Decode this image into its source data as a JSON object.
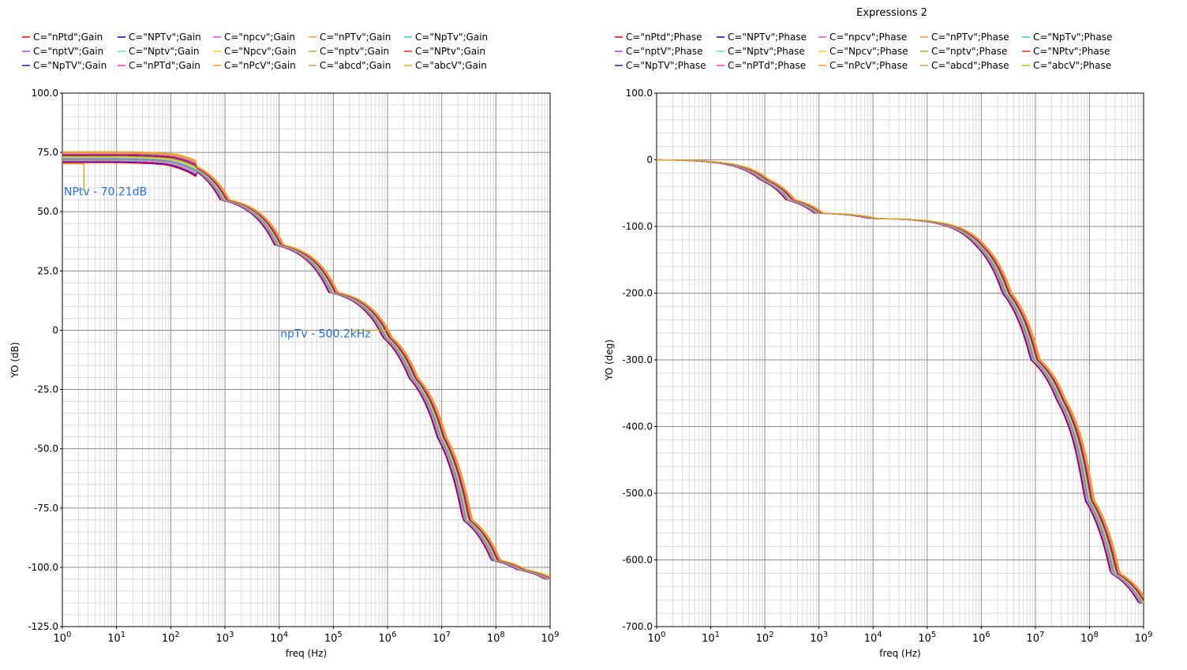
{
  "chart_data": [
    {
      "type": "line",
      "title": "",
      "xlabel": "freq (Hz)",
      "ylabel": "YO (dB)",
      "xscale": "log",
      "xlim": [
        1,
        1000000000
      ],
      "ylim": [
        -125,
        100
      ],
      "yticks": [
        "100.0",
        "75.0",
        "50.0",
        "25.0",
        "0",
        "-25.0",
        "-50.0",
        "-75.0",
        "-100.0",
        "-125.0"
      ],
      "xticks": [
        "10^0",
        "10^1",
        "10^2",
        "10^3",
        "10^4",
        "10^5",
        "10^6",
        "10^7",
        "10^8",
        "10^9"
      ],
      "grid": true,
      "legend_position": "top",
      "legend": [
        {
          "label": "C=\"nPtd\";Gain",
          "color": "#ff0000"
        },
        {
          "label": "C=\"NPTv\";Gain",
          "color": "#0000cc"
        },
        {
          "label": "C=\"npcv\";Gain",
          "color": "#ee44ee"
        },
        {
          "label": "C=\"nPTv\";Gain",
          "color": "#ee9933"
        },
        {
          "label": "C=\"NpTv\";Gain",
          "color": "#33cccc"
        },
        {
          "label": "C=\"nptV\";Gain",
          "color": "#aa44dd"
        },
        {
          "label": "C=\"Nptv\";Gain",
          "color": "#66ddbb"
        },
        {
          "label": "C=\"Npcv\";Gain",
          "color": "#eecc22"
        },
        {
          "label": "C=\"nptv\";Gain",
          "color": "#99bb33"
        },
        {
          "label": "C=\"NPtv\";Gain",
          "color": "#ee2222"
        },
        {
          "label": "C=\"NpTV\";Gain",
          "color": "#2222aa"
        },
        {
          "label": "C=\"nPTd\";Gain",
          "color": "#ff33cc"
        },
        {
          "label": "C=\"nPcV\";Gain",
          "color": "#ff9922"
        },
        {
          "label": "C=\"abcd\";Gain",
          "color": "#dd9955"
        },
        {
          "label": "C=\"abcV\";Gain",
          "color": "#ddaa22"
        }
      ],
      "series_template": {
        "freq_hz": [
          1,
          10,
          100,
          200,
          1000,
          10000,
          100000,
          1000000,
          3000000,
          10000000,
          30000000,
          100000000,
          300000000,
          1000000000
        ],
        "values_db": [
          73,
          73,
          72,
          70,
          55,
          36,
          16,
          -3,
          -20,
          -45,
          -80,
          -97,
          -101,
          -105
        ]
      },
      "annotations": [
        {
          "text": "NPtv - 70.21dB",
          "x": 2.5,
          "y": 70.21
        },
        {
          "text": "npTv - 500.2kHz",
          "x": 500200,
          "y": 0
        }
      ]
    },
    {
      "type": "line",
      "title": "Expressions 2",
      "xlabel": "freq (Hz)",
      "ylabel": "YO (deg)",
      "xscale": "log",
      "xlim": [
        1,
        1000000000
      ],
      "ylim": [
        -700,
        100
      ],
      "yticks": [
        "100.0",
        "0",
        "-100.0",
        "-200.0",
        "-300.0",
        "-400.0",
        "-500.0",
        "-600.0",
        "-700.0"
      ],
      "xticks": [
        "10^0",
        "10^1",
        "10^2",
        "10^3",
        "10^4",
        "10^5",
        "10^6",
        "10^7",
        "10^8",
        "10^9"
      ],
      "grid": true,
      "legend_position": "top",
      "legend": [
        {
          "label": "C=\"nPtd\";Phase",
          "color": "#ff0000"
        },
        {
          "label": "C=\"NPTv\";Phase",
          "color": "#0000cc"
        },
        {
          "label": "C=\"npcv\";Phase",
          "color": "#ee44ee"
        },
        {
          "label": "C=\"nPTv\";Phase",
          "color": "#ee9933"
        },
        {
          "label": "C=\"NpTv\";Phase",
          "color": "#33cccc"
        },
        {
          "label": "C=\"nptV\";Phase",
          "color": "#aa44dd"
        },
        {
          "label": "C=\"Nptv\";Phase",
          "color": "#66ddbb"
        },
        {
          "label": "C=\"Npcv\";Phase",
          "color": "#eecc22"
        },
        {
          "label": "C=\"nptv\";Phase",
          "color": "#99bb33"
        },
        {
          "label": "C=\"NPtv\";Phase",
          "color": "#ee2222"
        },
        {
          "label": "C=\"NpTV\";Phase",
          "color": "#2222aa"
        },
        {
          "label": "C=\"nPTd\";Phase",
          "color": "#ff33cc"
        },
        {
          "label": "C=\"nPcV\";Phase",
          "color": "#ff9922"
        },
        {
          "label": "C=\"abcd\";Phase",
          "color": "#dd9955"
        },
        {
          "label": "C=\"abcV\";Phase",
          "color": "#ddaa22"
        }
      ],
      "series_template": {
        "freq_hz": [
          1,
          10,
          50,
          100,
          300,
          1000,
          10000,
          100000,
          1000000,
          3000000,
          10000000,
          30000000,
          60000000,
          100000000,
          300000000,
          1000000000
        ],
        "values_deg": [
          0,
          -3,
          -15,
          -30,
          -60,
          -80,
          -88,
          -92,
          -130,
          -200,
          -300,
          -360,
          -420,
          -510,
          -620,
          -665
        ]
      }
    }
  ]
}
